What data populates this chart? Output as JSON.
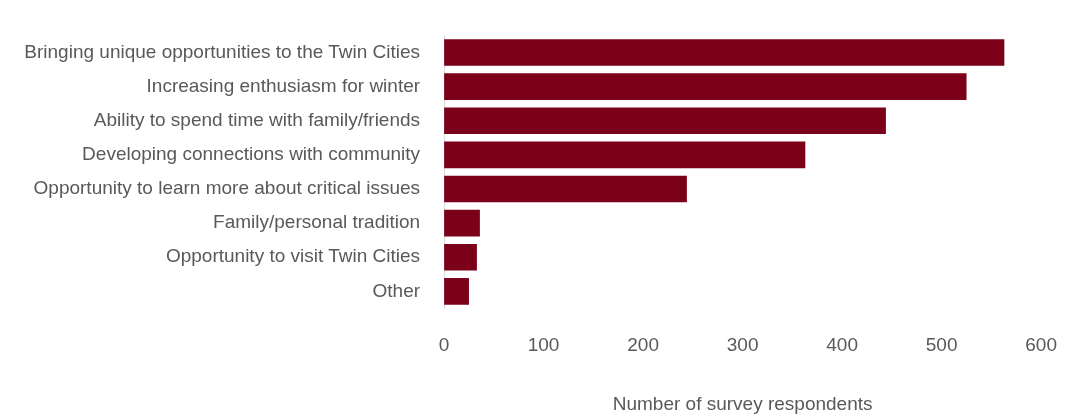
{
  "chart_data": {
    "type": "bar",
    "orientation": "horizontal",
    "xlabel": "Number of survey respondents",
    "categories": [
      "Bringing unique opportunities to the Twin Cities",
      "Increasing enthusiasm for winter",
      "Ability to spend time with family/friends",
      "Developing connections with community",
      "Opportunity to learn more about critical issues",
      "Family/personal tradition",
      "Opportunity to visit Twin Cities",
      "Other"
    ],
    "values": [
      563,
      525,
      444,
      363,
      244,
      36,
      33,
      25
    ],
    "color": "#7b0019",
    "xlim": [
      0,
      600
    ],
    "xticks": [
      0,
      100,
      200,
      300,
      400,
      500,
      600
    ],
    "grid": false,
    "legend": false
  }
}
